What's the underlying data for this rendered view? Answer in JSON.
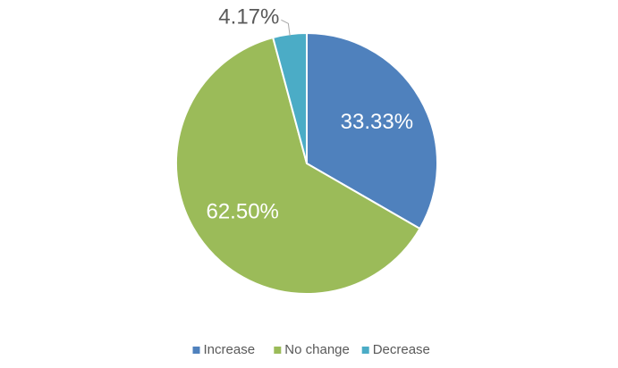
{
  "chart_data": {
    "type": "pie",
    "categories": [
      "Increase",
      "No change",
      "Decrease"
    ],
    "values": [
      33.33,
      62.5,
      4.17
    ],
    "value_labels": [
      "33.33%",
      "62.50%",
      "4.17%"
    ],
    "colors": [
      "#4f81bd",
      "#9bbb59",
      "#4bacc6"
    ],
    "legend": "bottom"
  }
}
